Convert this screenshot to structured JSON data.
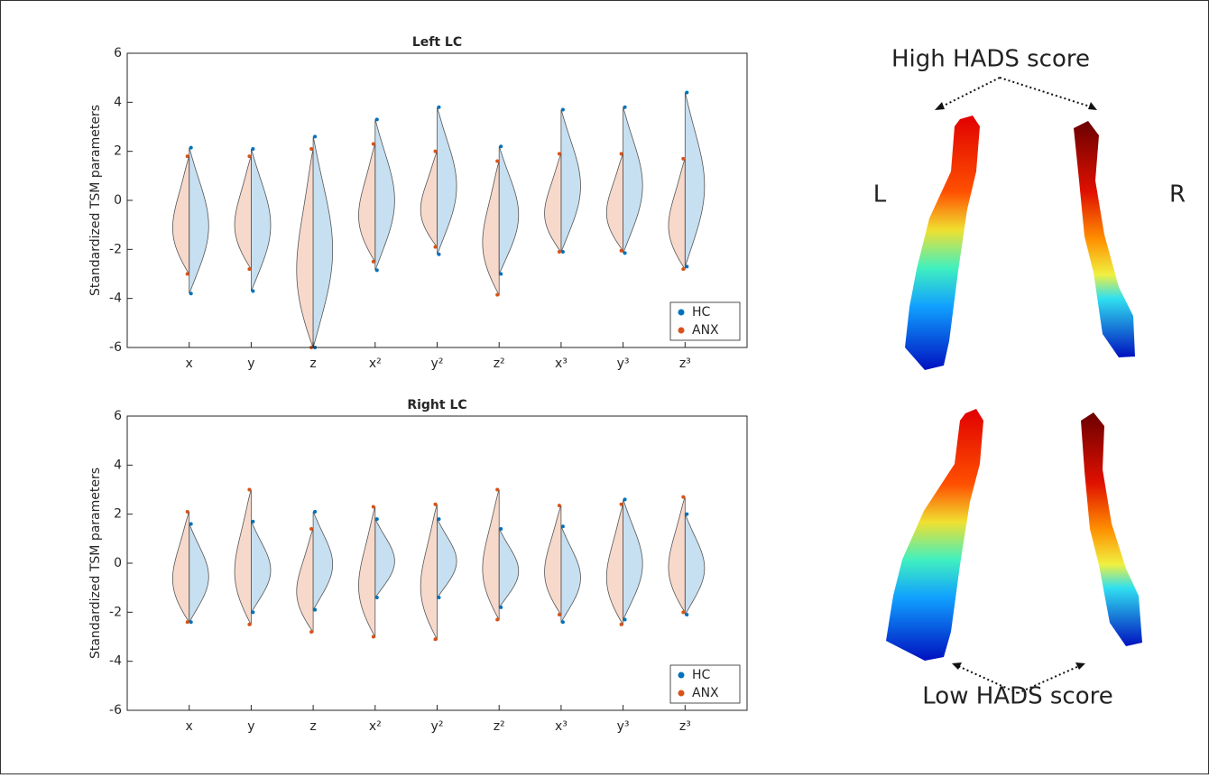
{
  "chart_data": [
    {
      "type": "violin",
      "title": "Left LC",
      "y_label": "Standardized TSM parameters",
      "categories": [
        "x",
        "y",
        "z",
        "x²",
        "y²",
        "z²",
        "x³",
        "y³",
        "z³"
      ],
      "ylim": [
        -6,
        6
      ],
      "yticks": [
        -6,
        -4,
        -2,
        0,
        2,
        4,
        6
      ],
      "legend": "lower-right",
      "series": [
        {
          "name": "HC",
          "color": "#0072bd",
          "side": "right",
          "max": [
            2.15,
            2.1,
            2.6,
            3.3,
            3.8,
            2.2,
            3.7,
            3.8,
            4.4
          ],
          "min": [
            -3.8,
            -3.7,
            -6,
            -2.85,
            -2.2,
            -3.0,
            -2.1,
            -2.15,
            -2.7
          ]
        },
        {
          "name": "ANX",
          "color": "#d95319",
          "side": "left",
          "max": [
            1.8,
            1.8,
            2.1,
            2.3,
            2.0,
            1.6,
            1.9,
            1.9,
            1.7
          ],
          "min": [
            -3.0,
            -2.8,
            -6,
            -2.5,
            -1.9,
            -3.85,
            -2.1,
            -2.05,
            -2.8
          ]
        }
      ]
    },
    {
      "type": "violin",
      "title": "Right LC",
      "y_label": "Standardized TSM parameters",
      "categories": [
        "x",
        "y",
        "z",
        "x²",
        "y²",
        "z²",
        "x³",
        "y³",
        "z³"
      ],
      "ylim": [
        -6,
        6
      ],
      "yticks": [
        -6,
        -4,
        -2,
        0,
        2,
        4,
        6
      ],
      "legend": "lower-right",
      "series": [
        {
          "name": "HC",
          "color": "#0072bd",
          "side": "right",
          "max": [
            1.6,
            1.7,
            2.1,
            1.8,
            1.8,
            1.4,
            1.5,
            2.6,
            2.0
          ],
          "min": [
            -2.4,
            -2.0,
            -1.9,
            -1.4,
            -1.4,
            -1.8,
            -2.4,
            -2.3,
            -2.1
          ]
        },
        {
          "name": "ANX",
          "color": "#d95319",
          "side": "left",
          "max": [
            2.1,
            3.0,
            1.4,
            2.3,
            2.4,
            3.0,
            2.35,
            2.4,
            2.7
          ],
          "min": [
            -2.4,
            -2.5,
            -2.8,
            -3.0,
            -3.1,
            -2.3,
            -2.1,
            -2.5,
            -2.0
          ]
        }
      ]
    }
  ],
  "figure": {
    "top_label": "High HADS score",
    "bottom_label": "Low HADS score",
    "left_label": "L",
    "right_label": "R"
  }
}
